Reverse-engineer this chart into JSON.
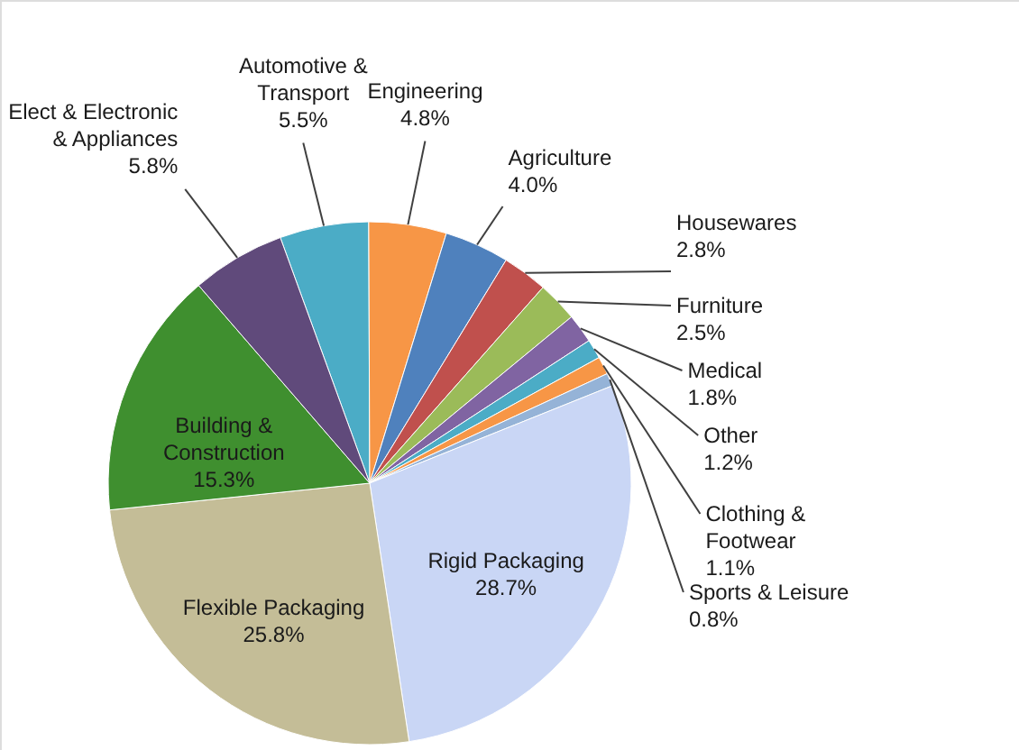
{
  "chart_data": {
    "type": "pie",
    "categories": [
      "Automotive & Transport",
      "Engineering",
      "Agriculture",
      "Housewares",
      "Furniture",
      "Medical",
      "Other",
      "Clothing & Footwear",
      "Sports & Leisure",
      "Rigid Packaging",
      "Flexible Packaging",
      "Building & Construction",
      "Elect & Electronic & Appliances"
    ],
    "values": [
      5.5,
      4.8,
      4.0,
      2.8,
      2.5,
      1.8,
      1.2,
      1.1,
      0.8,
      28.7,
      25.8,
      15.3,
      5.8
    ],
    "colors": [
      "#4bacc6",
      "#f79646",
      "#4f81bd",
      "#c0504d",
      "#9bbb59",
      "#8064a2",
      "#4bacc6",
      "#f79646",
      "#95b3d7",
      "#c9d6f5",
      "#c4bd97",
      "#3f8f2f",
      "#604a7b"
    ],
    "value_labels": [
      "5.5%",
      "4.8%",
      "4.0%",
      "2.8%",
      "2.5%",
      "1.8%",
      "1.2%",
      "1.1%",
      "0.8%",
      "28.7%",
      "25.8%",
      "15.3%",
      "5.8%"
    ]
  }
}
